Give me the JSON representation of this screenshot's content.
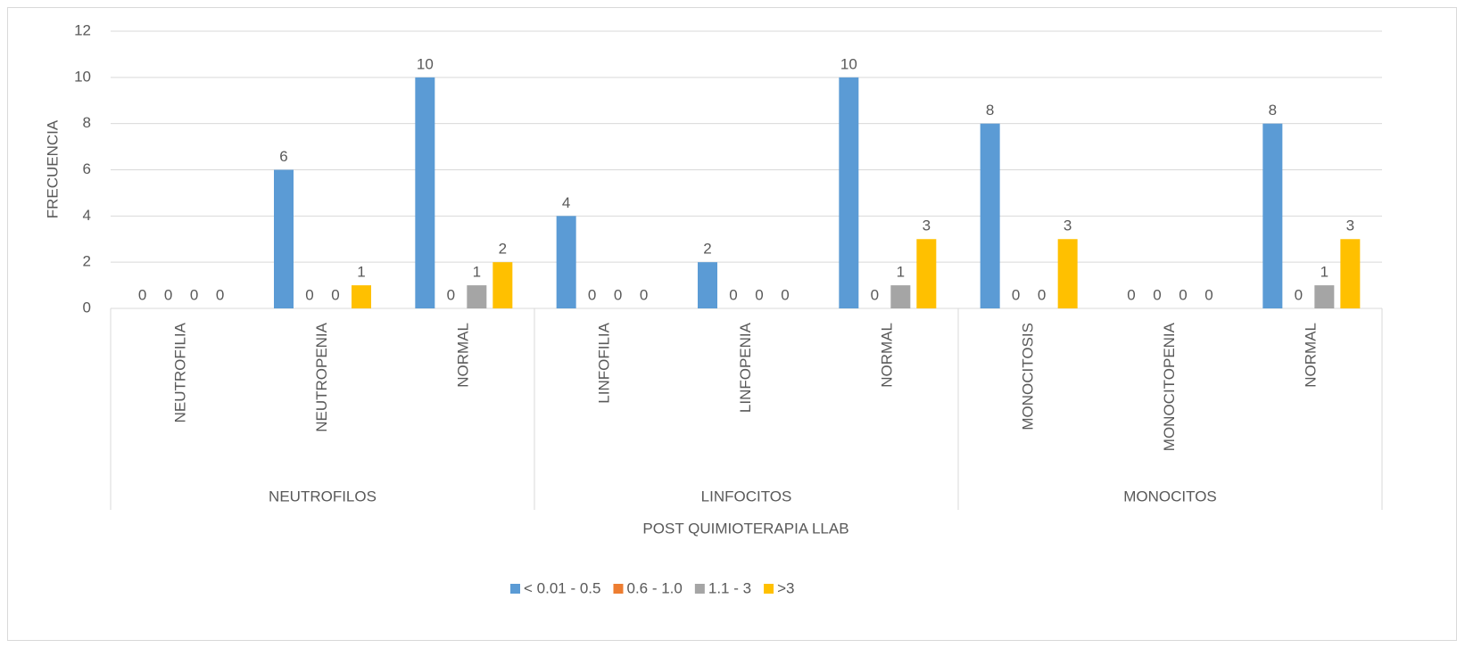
{
  "chart_data": {
    "type": "bar",
    "x_label": "POST QUIMIOTERAPIA LLAB",
    "y_label": "FRECUENCIA",
    "groups": [
      {
        "name": "NEUTROFILOS",
        "categories": [
          "NEUTROFILIA",
          "NEUTROPENIA",
          "NORMAL"
        ]
      },
      {
        "name": "LINFOCITOS",
        "categories": [
          "LINFOFILIA",
          "LINFOPENIA",
          "NORMAL"
        ]
      },
      {
        "name": "MONOCITOS",
        "categories": [
          "MONOCITOSIS",
          "MONOCITOPENIA",
          "NORMAL"
        ]
      }
    ],
    "series": [
      {
        "name": "< 0.01 - 0.5",
        "color": "#5b9bd5",
        "values": [
          0,
          6,
          10,
          4,
          2,
          10,
          8,
          0,
          8
        ]
      },
      {
        "name": "0.6 - 1.0",
        "color": "#ed7d31",
        "values": [
          0,
          0,
          0,
          0,
          0,
          0,
          0,
          0,
          0
        ]
      },
      {
        "name": "1.1 - 3",
        "color": "#a5a5a5",
        "values": [
          0,
          0,
          1,
          0,
          0,
          1,
          0,
          0,
          1
        ]
      },
      {
        "name": ">3",
        "color": "#ffc000",
        "values": [
          0,
          1,
          2,
          0,
          0,
          3,
          3,
          0,
          3
        ]
      }
    ],
    "ylim": [
      0,
      12
    ],
    "yticks": [
      0,
      2,
      4,
      6,
      8,
      10,
      12
    ],
    "grid": true,
    "legend": "bottom"
  }
}
